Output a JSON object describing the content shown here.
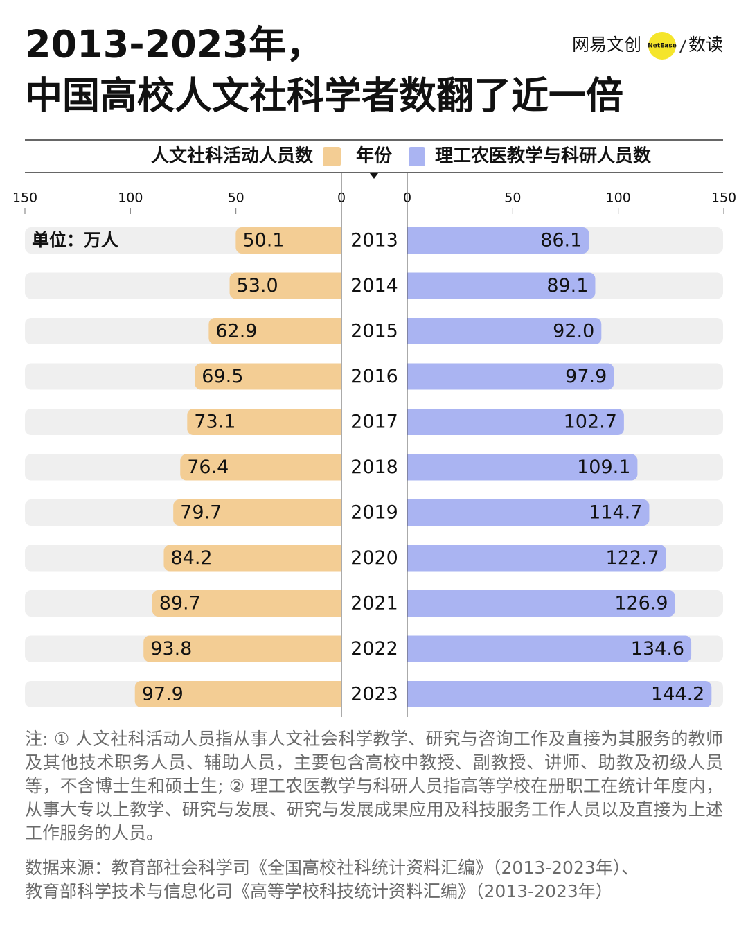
{
  "chart_data": {
    "type": "bar",
    "title": [
      "2013-2023年，",
      "中国高校人文社科学者数翻了近一倍"
    ],
    "brand": "网易文创",
    "brand_badge": "NetEase",
    "brand_sub": "数读",
    "category_label": "年份",
    "unit": "单位：万人",
    "categories": [
      "2013",
      "2014",
      "2015",
      "2016",
      "2017",
      "2018",
      "2019",
      "2020",
      "2021",
      "2022",
      "2023"
    ],
    "series": [
      {
        "name": "人文社科活动人员数",
        "color": "#f3cd94",
        "values": [
          50.1,
          53.0,
          62.9,
          69.5,
          73.1,
          76.4,
          79.7,
          84.2,
          89.7,
          93.8,
          97.9
        ],
        "value_labels": [
          "50.1",
          "53.0",
          "62.9",
          "69.5",
          "73.1",
          "76.4",
          "79.7",
          "84.2",
          "89.7",
          "93.8",
          "97.9"
        ]
      },
      {
        "name": "理工农医教学与科研人员数",
        "color": "#aab4f2",
        "values": [
          86.1,
          89.1,
          92.0,
          97.9,
          102.7,
          109.1,
          114.7,
          122.7,
          126.9,
          134.6,
          144.2
        ],
        "value_labels": [
          "86.1",
          "89.1",
          "92.0",
          "97.9",
          "102.7",
          "109.1",
          "114.7",
          "122.7",
          "126.9",
          "134.6",
          "144.2"
        ]
      }
    ],
    "xlim": [
      0,
      150
    ],
    "xticks": [
      0,
      50,
      100,
      150
    ],
    "notes": "注: ① 人文社科活动人员指从事人文社会科学教学、研究与咨询工作及直接为其服务的教师及其他技术职务人员、辅助人员，主要包含高校中教授、副教授、讲师、助教及初级人员等，不含博士生和硕士生; ② 理工农医教学与科研人员指高等学校在册职工在统计年度内，从事大专以上教学、研究与发展、研究与发展成果应用及科技服务工作人员以及直接为上述工作服务的人员。",
    "source": [
      "数据来源：教育部社会科学司《全国高校社科统计资料汇编》（2013-2023年）、",
      "教育部科学技术与信息化司《高等学校科技统计资料汇编》（2013-2023年）"
    ]
  }
}
